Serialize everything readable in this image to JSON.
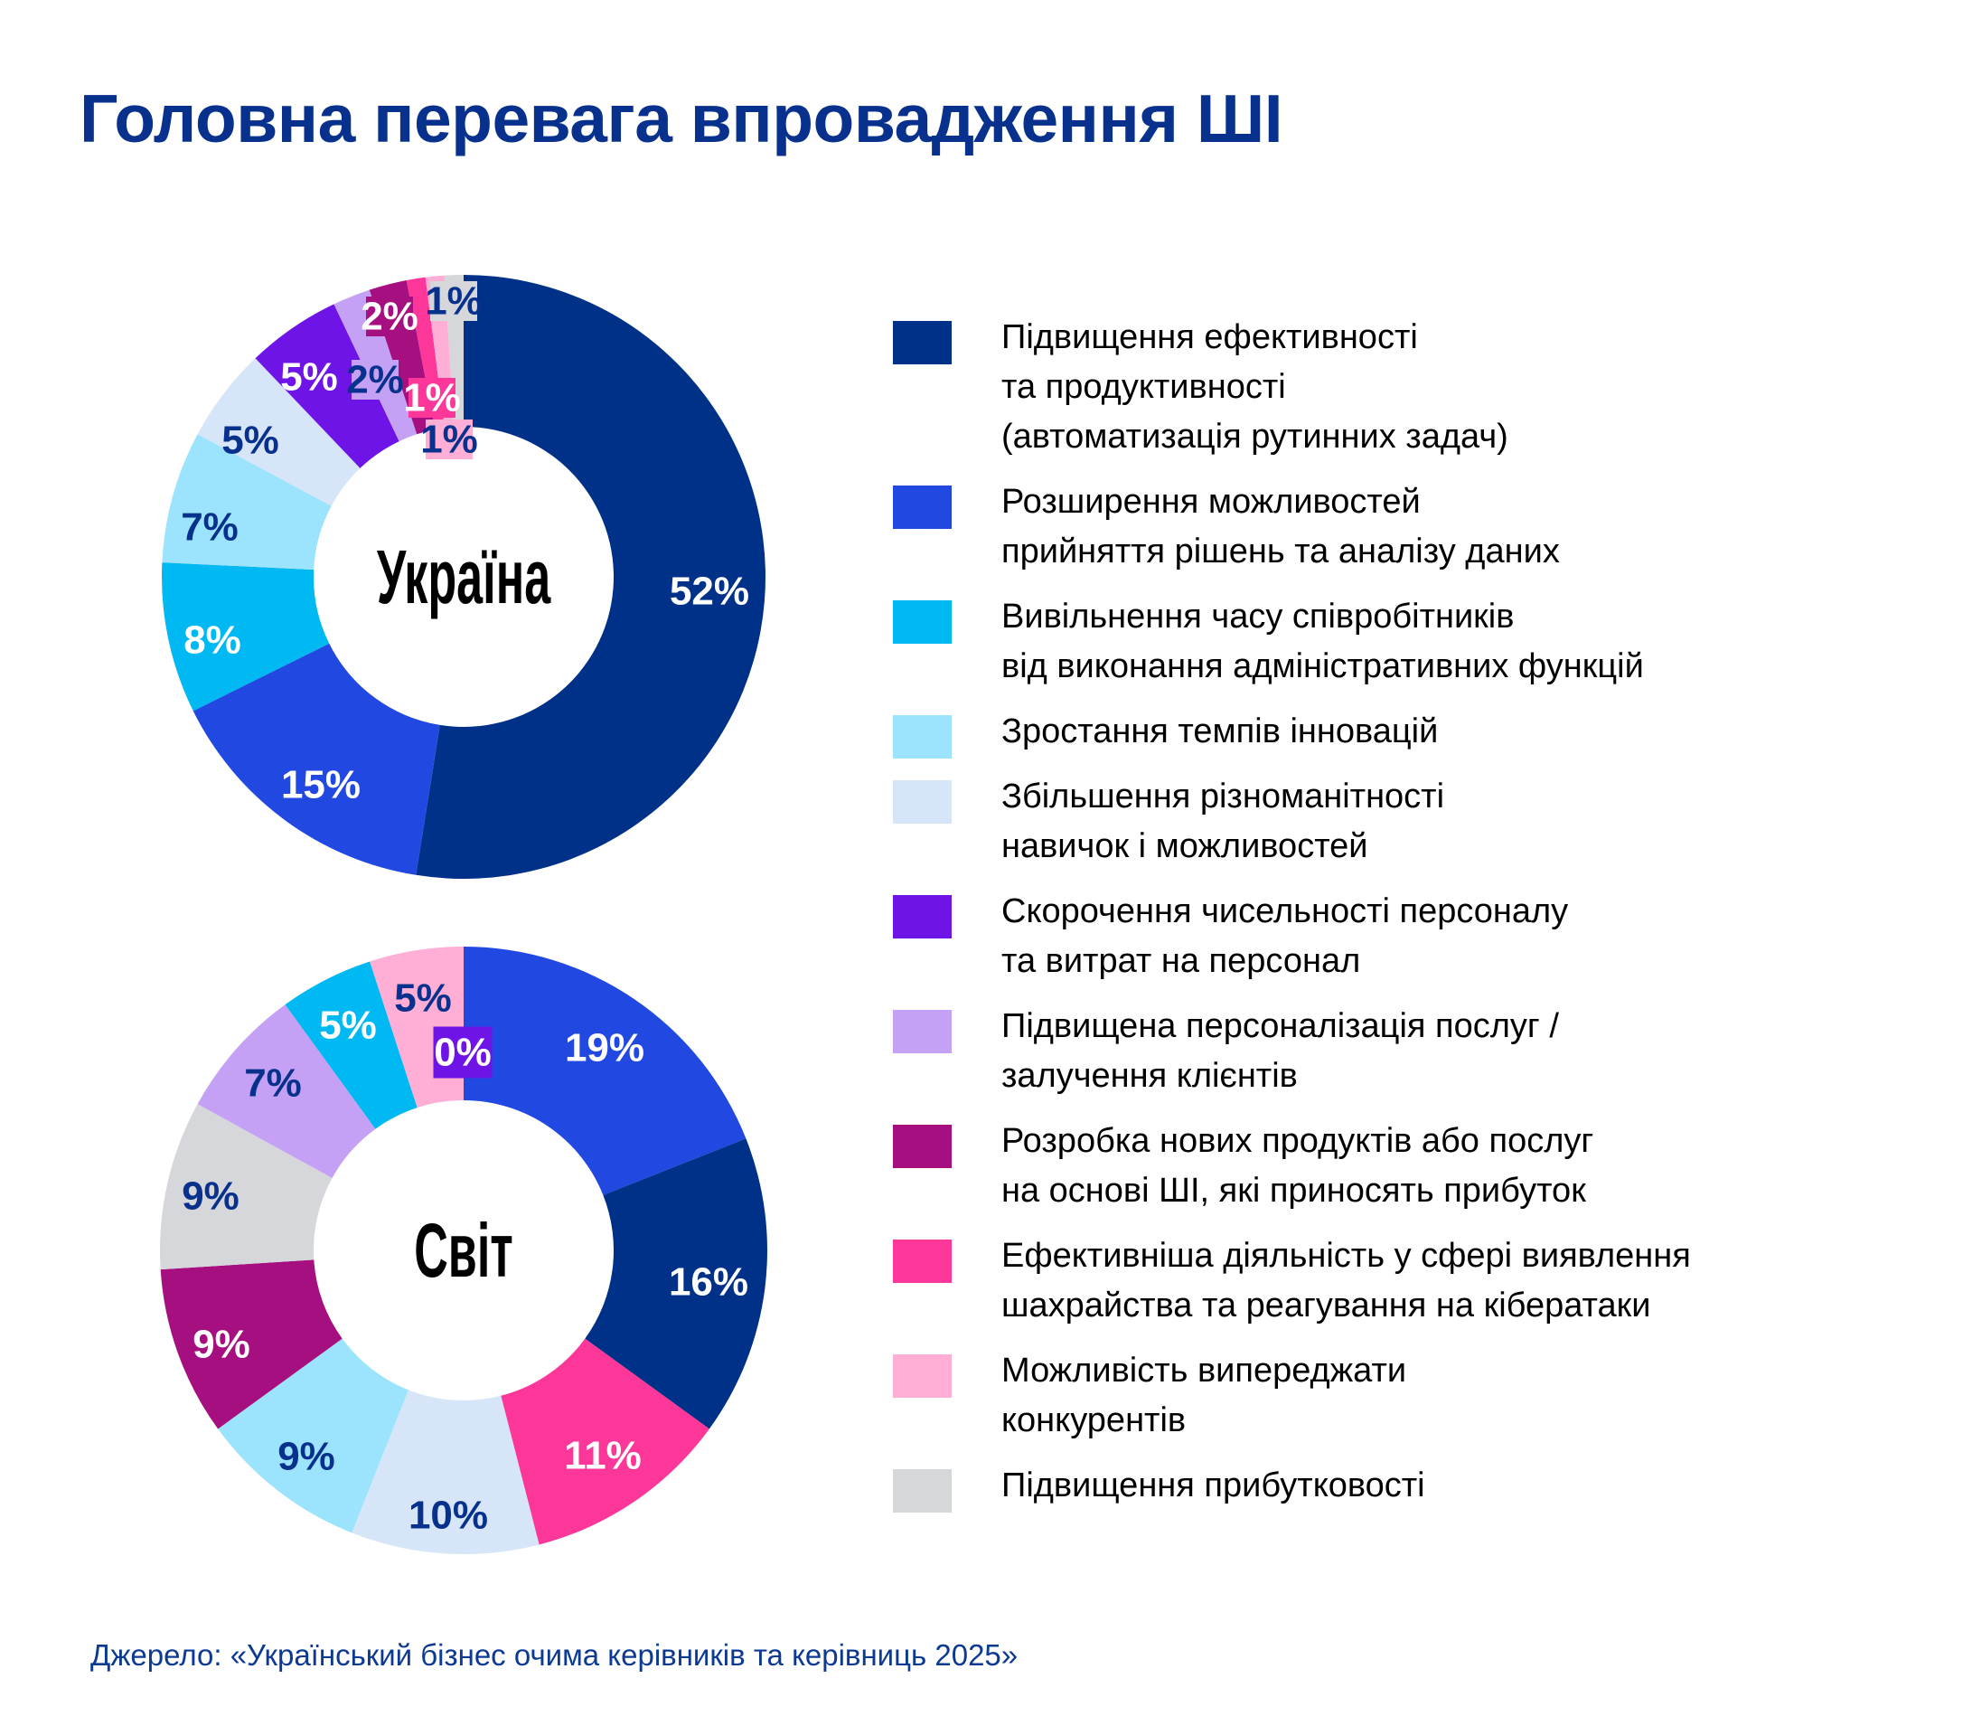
{
  "title": "Головна перевага впровадження ШІ",
  "source": "Джерело: «Український бізнес очима керівників та керівниць 2025»",
  "legend": [
    {
      "label": "Підвищення ефективності\nта продуктивності\n(автоматизація рутинних задач)",
      "color": "#003189"
    },
    {
      "label": "Розширення можливостей\nприйняття рішень та аналізу даних",
      "color": "#2149e1"
    },
    {
      "label": "Вивільнення часу співробітників\nвід виконання адміністративних функцій",
      "color": "#00b8f2"
    },
    {
      "label": "Зростання темпів інновацій",
      "color": "#9ce4fd"
    },
    {
      "label": "Збільшення різноманітності\nнавичок і можливостей",
      "color": "#d6e5f7"
    },
    {
      "label": "Скорочення чисельності персоналу\nта витрат на персонал",
      "color": "#6f14e6"
    },
    {
      "label": "Підвищена персоналізація послуг /\nзалучення клієнтів",
      "color": "#c5a1f5"
    },
    {
      "label": "Розробка нових продуктів або послуг\nна основі ШІ, які приносять прибуток",
      "color": "#a50f80"
    },
    {
      "label": "Ефективніша діяльність у сфері виявлення\nшахрайства та реагування на кібератаки",
      "color": "#fd3699"
    },
    {
      "label": "Можливість випереджати\nконкурентів",
      "color": "#ffaed6"
    },
    {
      "label": "Підвищення прибутковості",
      "color": "#d6d7da"
    }
  ],
  "chart_data": [
    {
      "type": "pie",
      "subtype": "donut",
      "title": "Україна",
      "unit": "%",
      "categories": [
        "Підвищення ефективності та продуктивності (автоматизація рутинних задач)",
        "Розширення можливостей прийняття рішень та аналізу даних",
        "Вивільнення часу співробітників від виконання адміністративних функцій",
        "Зростання темпів інновацій",
        "Збільшення різноманітності навичок і можливостей",
        "Скорочення чисельності персоналу та витрат на персонал",
        "Підвищена персоналізація послуг / залучення клієнтів",
        "Розробка нових продуктів або послуг на основі ШІ, які приносять прибуток",
        "Ефективніша діяльність у сфері виявлення шахрайства та реагування на кібератаки",
        "Можливість випереджати конкурентів",
        "Підвищення прибутковості"
      ],
      "values": [
        52,
        15,
        8,
        7,
        5,
        5,
        2,
        2,
        1,
        1,
        1
      ],
      "labels": [
        "52%",
        "15%",
        "8%",
        "7%",
        "5%",
        "5%",
        "2%",
        "2%",
        "1%",
        "1%",
        "1%"
      ],
      "colors": [
        "#003189",
        "#2149e1",
        "#00b8f2",
        "#9ce4fd",
        "#d6e5f7",
        "#6f14e6",
        "#c5a1f5",
        "#a50f80",
        "#fd3699",
        "#ffaed6",
        "#d6d7da"
      ],
      "label_colors": [
        "#ffffff",
        "#ffffff",
        "#ffffff",
        "#07318c",
        "#07318c",
        "#ffffff",
        "#07318c",
        "#ffffff",
        "#ffffff",
        "#07318c",
        "#07318c"
      ],
      "legend_position": "right"
    },
    {
      "type": "pie",
      "subtype": "donut",
      "title": "Світ",
      "unit": "%",
      "categories": [
        "Розширення можливостей прийняття рішень та аналізу даних",
        "Підвищення ефективності та продуктивності (автоматизація рутинних задач)",
        "Ефективніша діяльність у сфері виявлення шахрайства та реагування на кібератаки",
        "Збільшення різноманітності навичок і можливостей",
        "Зростання темпів інновацій",
        "Розробка нових продуктів або послуг на основі ШІ, які приносять прибуток",
        "Підвищення прибутковості",
        "Підвищена персоналізація послуг / залучення клієнтів",
        "Вивільнення часу співробітників від виконання адміністративних функцій",
        "Можливість випереджати конкурентів",
        "Скорочення чисельності персоналу та витрат на персонал"
      ],
      "values": [
        19,
        16,
        11,
        10,
        9,
        9,
        9,
        7,
        5,
        5,
        0
      ],
      "labels": [
        "19%",
        "16%",
        "11%",
        "10%",
        "9%",
        "9%",
        "9%",
        "7%",
        "5%",
        "5%",
        "0%"
      ],
      "colors": [
        "#2149e1",
        "#003189",
        "#fd3699",
        "#d6e5f7",
        "#9ce4fd",
        "#a50f80",
        "#d6d7da",
        "#c5a1f5",
        "#00b8f2",
        "#ffaed6",
        "#6f14e6"
      ],
      "label_colors": [
        "#ffffff",
        "#ffffff",
        "#ffffff",
        "#07318c",
        "#07318c",
        "#ffffff",
        "#07318c",
        "#07318c",
        "#ffffff",
        "#07318c",
        "#ffffff"
      ],
      "legend_position": "right"
    }
  ]
}
